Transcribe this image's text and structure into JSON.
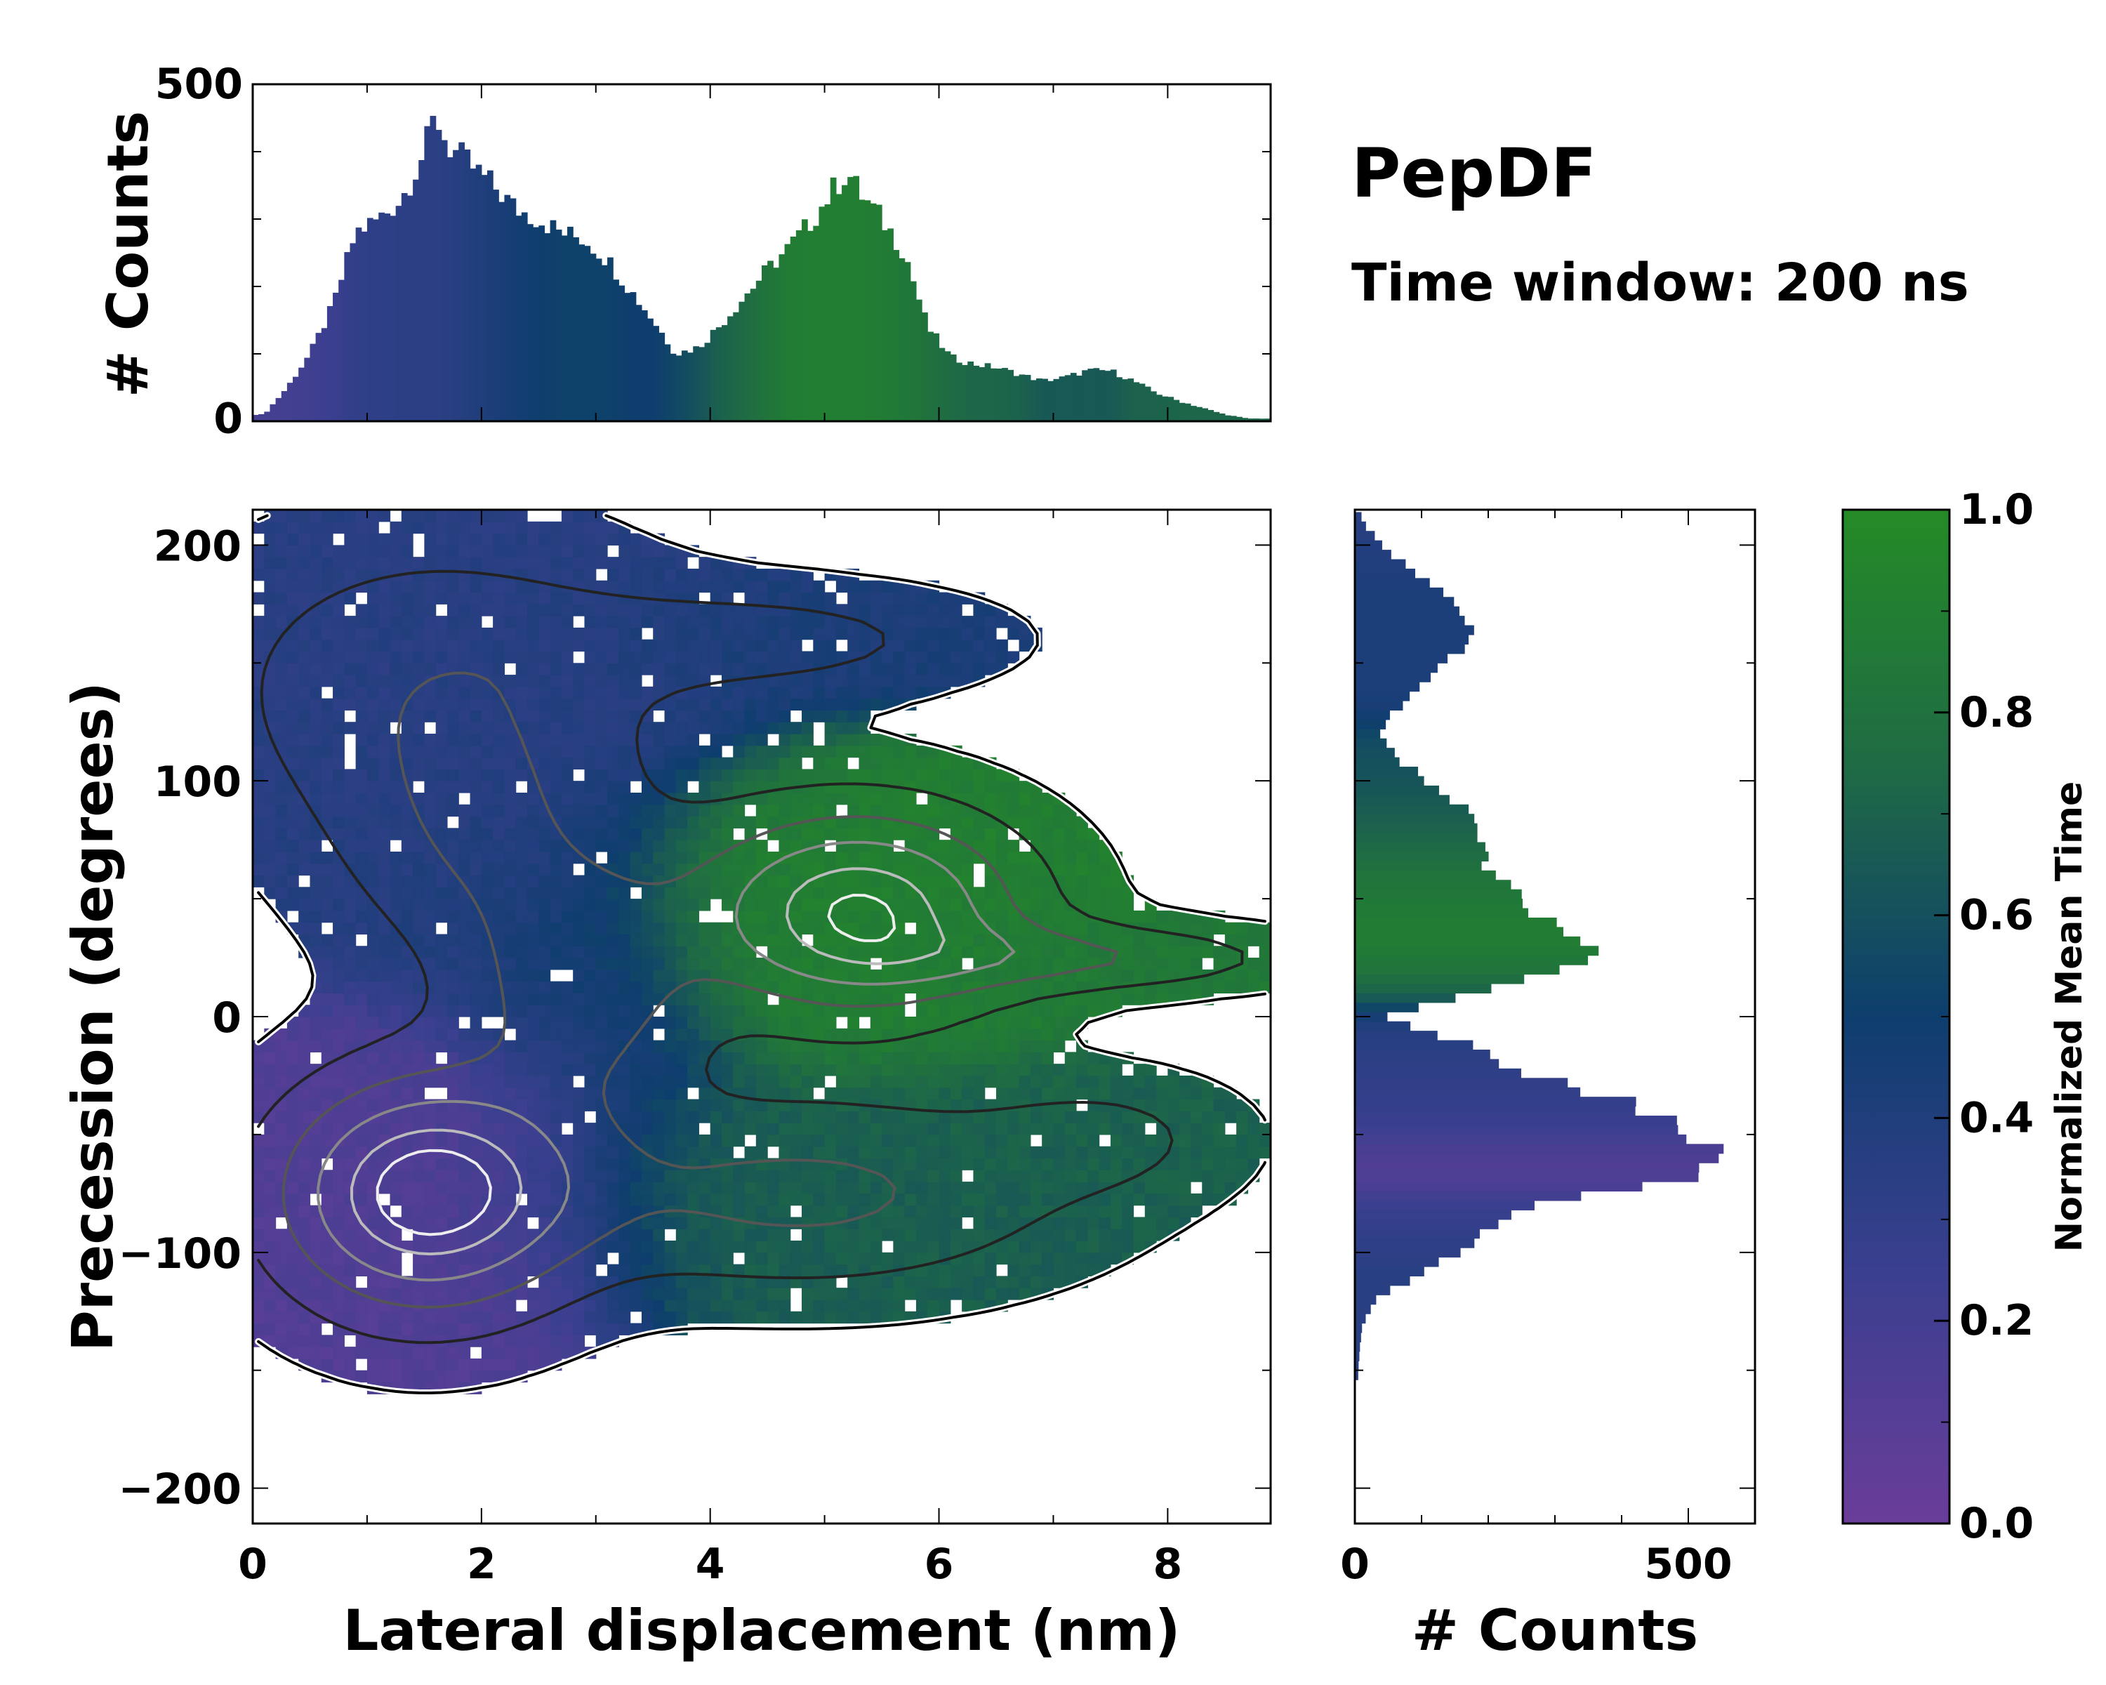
{
  "title": "PepDF",
  "subtitle": "Time window: 200 ns",
  "colors": {
    "low": "#6a3d9a",
    "mid": "#0e3e6e",
    "high": "#248b26"
  },
  "chart_data": [
    {
      "id": "top-hist",
      "type": "bar",
      "title": "",
      "xlabel": "",
      "ylabel": "# Counts",
      "xlim": [
        0,
        8.9
      ],
      "ylim": [
        0,
        500
      ],
      "yticks": [
        0,
        500
      ],
      "bin_width": 0.05,
      "x": [
        0.1,
        0.3,
        0.5,
        0.7,
        0.9,
        1.1,
        1.3,
        1.5,
        1.6,
        1.7,
        1.9,
        2.1,
        2.3,
        2.5,
        2.7,
        2.9,
        3.1,
        3.3,
        3.5,
        3.7,
        3.9,
        4.1,
        4.3,
        4.5,
        4.7,
        4.9,
        5.1,
        5.2,
        5.3,
        5.5,
        5.7,
        5.9,
        6.1,
        6.3,
        6.5,
        6.7,
        6.9,
        7.1,
        7.3,
        7.5,
        7.7,
        7.9,
        8.1,
        8.3,
        8.5,
        8.7
      ],
      "values": [
        10,
        50,
        100,
        170,
        280,
        300,
        330,
        400,
        455,
        410,
        380,
        350,
        315,
        300,
        280,
        270,
        240,
        195,
        150,
        100,
        110,
        145,
        185,
        225,
        260,
        300,
        350,
        370,
        340,
        300,
        250,
        140,
        95,
        85,
        80,
        70,
        60,
        65,
        75,
        75,
        60,
        42,
        30,
        20,
        10,
        4
      ],
      "mean_time_color": [
        0.2,
        0.2,
        0.22,
        0.25,
        0.3,
        0.32,
        0.33,
        0.33,
        0.33,
        0.35,
        0.38,
        0.42,
        0.46,
        0.5,
        0.52,
        0.52,
        0.52,
        0.5,
        0.5,
        0.55,
        0.62,
        0.7,
        0.75,
        0.82,
        0.88,
        0.9,
        0.9,
        0.9,
        0.9,
        0.88,
        0.85,
        0.8,
        0.75,
        0.72,
        0.72,
        0.7,
        0.65,
        0.65,
        0.65,
        0.65,
        0.7,
        0.7,
        0.72,
        0.72,
        0.72,
        0.72
      ]
    },
    {
      "id": "main-heatmap",
      "type": "heatmap",
      "xlabel": "Lateral displacement (nm)",
      "ylabel": "Precession (degrees)",
      "xlim": [
        0,
        8.9
      ],
      "ylim": [
        -215,
        215
      ],
      "xticks": [
        0,
        2,
        4,
        6,
        8
      ],
      "yticks": [
        -200,
        -100,
        0,
        100,
        200
      ],
      "colormap": "purple-blue-green",
      "clusters": [
        {
          "name": "upper-left",
          "cx": 1.6,
          "cy": 140,
          "sx": 1.4,
          "sy": 45,
          "mean_time": 0.35,
          "peak": 0.35
        },
        {
          "name": "upper-right",
          "cx": 4.6,
          "cy": 160,
          "sx": 1.3,
          "sy": 16,
          "mean_time": 0.42,
          "peak": 0.25
        },
        {
          "name": "mid-left",
          "cx": 2.0,
          "cy": 70,
          "sx": 0.9,
          "sy": 38,
          "mean_time": 0.38,
          "peak": 0.3
        },
        {
          "name": "center",
          "cx": 2.9,
          "cy": 10,
          "sx": 0.7,
          "sy": 35,
          "mean_time": 0.45,
          "peak": 0.45
        },
        {
          "name": "green-core",
          "cx": 5.3,
          "cy": 45,
          "sx": 1.0,
          "sy": 30,
          "mean_time": 0.9,
          "peak": 0.95
        },
        {
          "name": "green-tail",
          "cx": 7.4,
          "cy": 25,
          "sx": 1.2,
          "sy": 10,
          "mean_time": 0.85,
          "peak": 0.35
        },
        {
          "name": "purple-core",
          "cx": 1.5,
          "cy": -75,
          "sx": 0.9,
          "sy": 35,
          "mean_time": 0.12,
          "peak": 1.0
        },
        {
          "name": "teal-lower",
          "cx": 4.8,
          "cy": -75,
          "sx": 1.6,
          "sy": 28,
          "mean_time": 0.68,
          "peak": 0.45
        },
        {
          "name": "teal-tail",
          "cx": 7.5,
          "cy": -50,
          "sx": 0.8,
          "sy": 18,
          "mean_time": 0.7,
          "peak": 0.2
        }
      ]
    },
    {
      "id": "right-hist",
      "type": "bar",
      "orientation": "horizontal",
      "xlabel": "# Counts",
      "ylabel": "",
      "xlim": [
        0,
        600
      ],
      "ylim": [
        -215,
        215
      ],
      "xticks": [
        0,
        500
      ],
      "bin_width": 4,
      "y": [
        210,
        200,
        190,
        180,
        170,
        160,
        150,
        140,
        130,
        120,
        110,
        100,
        90,
        80,
        70,
        60,
        50,
        40,
        30,
        20,
        10,
        0,
        -5,
        -10,
        -20,
        -30,
        -40,
        -50,
        -55,
        -60,
        -65,
        -70,
        -75,
        -80,
        -90,
        -100,
        -110,
        -120,
        -130,
        -140,
        -150
      ],
      "values": [
        10,
        40,
        80,
        140,
        165,
        180,
        130,
        100,
        60,
        40,
        60,
        110,
        155,
        180,
        195,
        210,
        240,
        290,
        360,
        330,
        180,
        50,
        90,
        150,
        230,
        320,
        450,
        500,
        530,
        545,
        520,
        470,
        380,
        280,
        200,
        150,
        90,
        30,
        12,
        8,
        5
      ],
      "mean_time_color": [
        0.35,
        0.38,
        0.4,
        0.42,
        0.42,
        0.42,
        0.42,
        0.42,
        0.45,
        0.55,
        0.6,
        0.62,
        0.66,
        0.7,
        0.75,
        0.82,
        0.85,
        0.88,
        0.88,
        0.82,
        0.7,
        0.45,
        0.38,
        0.35,
        0.32,
        0.3,
        0.28,
        0.22,
        0.18,
        0.15,
        0.14,
        0.15,
        0.2,
        0.25,
        0.3,
        0.32,
        0.35,
        0.35,
        0.35,
        0.35,
        0.35
      ]
    },
    {
      "id": "colorbar",
      "type": "heatmap",
      "ylabel": "Normalized Mean Time",
      "ylim": [
        0,
        1
      ],
      "ticks": [
        "0.0",
        "0.2",
        "0.4",
        "0.6",
        "0.8",
        "1.0"
      ]
    }
  ]
}
